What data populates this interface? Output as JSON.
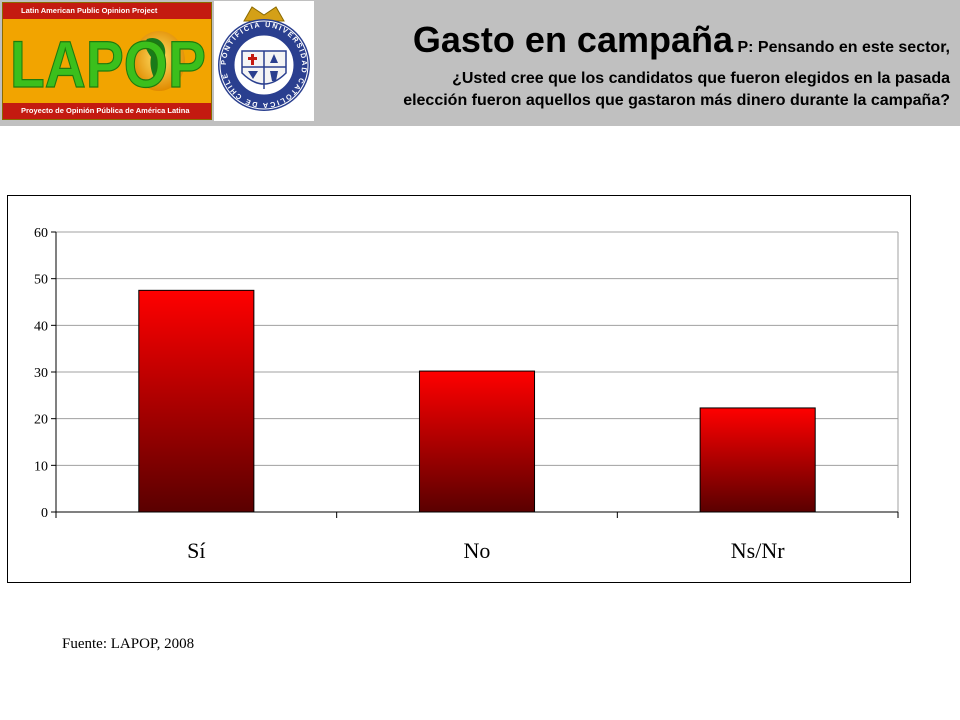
{
  "header": {
    "logo": {
      "top_text": "Latin American Public Opinion Project",
      "word": "LAPOP",
      "bottom_text": "Proyecto de Opinión Pública de América Latina"
    },
    "seal": {
      "ring_text": "PONTIFICIA UNIVERSIDAD CATÓLICA DE CHILE"
    },
    "title": "Gasto en campaña",
    "question_prefix": "P: Pensando en este sector,",
    "question_line2": "¿Usted cree que los candidatos que fueron elegidos en la pasada",
    "question_line3": "elección fueron aquellos que gastaron más dinero durante la campaña?"
  },
  "chart_data": {
    "type": "bar",
    "categories": [
      "Sí",
      "No",
      "Ns/Nr"
    ],
    "values": [
      47.5,
      30.2,
      22.3
    ],
    "title": "",
    "xlabel": "",
    "ylabel": "",
    "ylim": [
      0,
      60
    ],
    "yticks": [
      0,
      10,
      20,
      30,
      40,
      50,
      60
    ],
    "grid": true,
    "bar_color_top": "#ff0000",
    "bar_color_bottom": "#5a0000"
  },
  "footer": {
    "source": "Fuente: LAPOP, 2008"
  }
}
